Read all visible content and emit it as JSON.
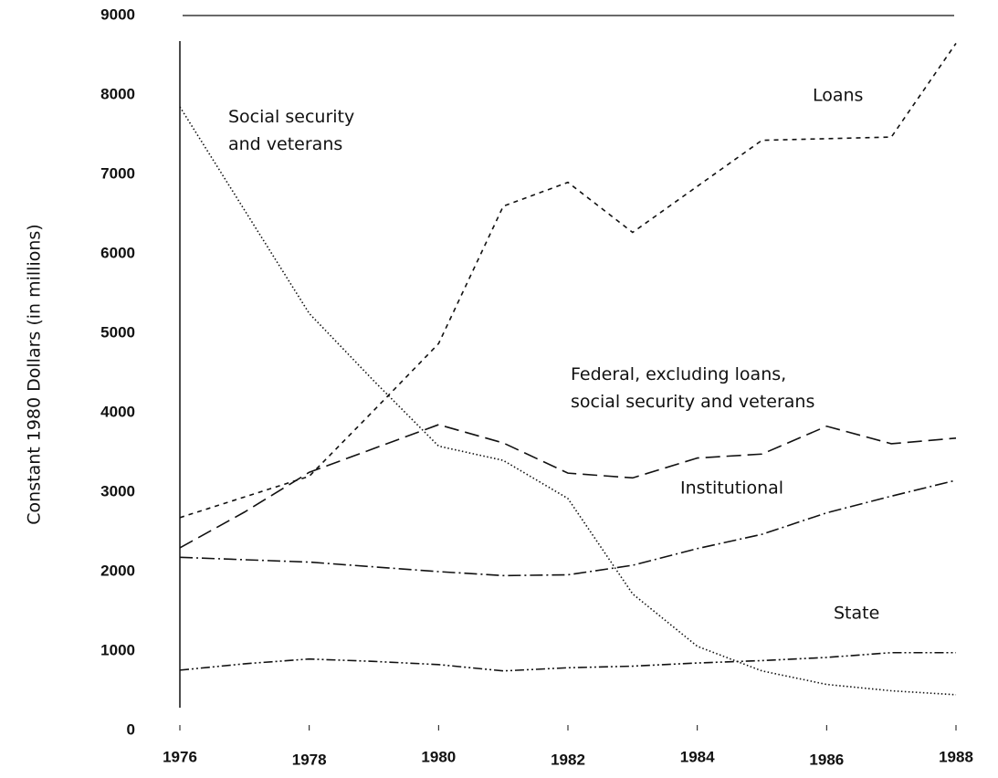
{
  "chart_data": {
    "type": "line",
    "y_label": "Constant 1980 Dollars (in millions)",
    "x": [
      1976,
      1977,
      1978,
      1979,
      1980,
      1981,
      1982,
      1983,
      1984,
      1985,
      1986,
      1987,
      1988
    ],
    "xlim": [
      1976,
      1988
    ],
    "xticks": [
      1976,
      1978,
      1980,
      1982,
      1984,
      1986,
      1988
    ],
    "ylim": [
      0,
      9000
    ],
    "yticks": [
      0,
      1000,
      2000,
      3000,
      4000,
      5000,
      6000,
      7000,
      8000,
      9000
    ],
    "series": [
      {
        "name": "Loans",
        "color": "#111111",
        "style": "short-dash",
        "values": [
          2680,
          2940,
          3200,
          4030,
          4870,
          6600,
          6900,
          6270,
          6850,
          7430,
          7450,
          7470,
          8650
        ]
      },
      {
        "name": "Social security and veterans",
        "color": "#111111",
        "style": "dotted",
        "values": [
          7850,
          6550,
          5250,
          4400,
          3580,
          3400,
          2920,
          1720,
          1060,
          750,
          580,
          500,
          450
        ]
      },
      {
        "name": "Federal, excluding loans, social security and veterans",
        "color": "#111111",
        "style": "long-dash",
        "values": [
          2300,
          2750,
          3250,
          3550,
          3850,
          3620,
          3240,
          3180,
          3430,
          3480,
          3830,
          3610,
          3680
        ]
      },
      {
        "name": "Institutional",
        "color": "#111111",
        "style": "dash-dot",
        "values": [
          2180,
          2150,
          2120,
          2060,
          2000,
          1950,
          1960,
          2080,
          2290,
          2470,
          2740,
          2950,
          3150
        ]
      },
      {
        "name": "State",
        "color": "#111111",
        "style": "dash-dot-dot",
        "values": [
          760,
          840,
          900,
          870,
          830,
          750,
          790,
          810,
          850,
          880,
          920,
          980,
          980
        ]
      }
    ]
  }
}
